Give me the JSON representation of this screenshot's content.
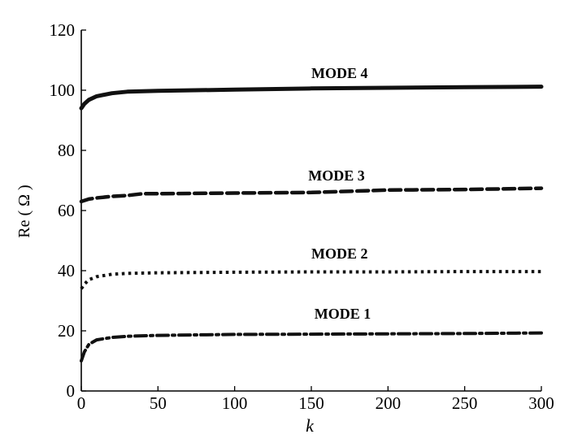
{
  "chart_data": {
    "type": "line",
    "title": "",
    "xlabel": "k",
    "ylabel": "Re ( Ω )",
    "xlim": [
      0,
      300
    ],
    "ylim": [
      0,
      120
    ],
    "xticks": [
      0,
      50,
      100,
      150,
      200,
      250,
      300
    ],
    "yticks": [
      0,
      20,
      40,
      60,
      80,
      100,
      120
    ],
    "grid": false,
    "legend": "none",
    "series": [
      {
        "name": "MODE 1",
        "style": "dashdot",
        "x": [
          0,
          2,
          5,
          10,
          20,
          30,
          50,
          100,
          150,
          200,
          250,
          300
        ],
        "y": [
          10,
          13,
          15.5,
          17,
          17.8,
          18.2,
          18.5,
          18.8,
          18.9,
          19,
          19.1,
          19.3
        ]
      },
      {
        "name": "MODE 2",
        "style": "dotted",
        "x": [
          0,
          2,
          5,
          10,
          20,
          30,
          50,
          100,
          150,
          200,
          250,
          300
        ],
        "y": [
          34,
          35.5,
          37,
          38,
          38.8,
          39.1,
          39.3,
          39.5,
          39.6,
          39.6,
          39.7,
          39.7
        ]
      },
      {
        "name": "MODE 3",
        "style": "dashed",
        "x": [
          0,
          5,
          10,
          20,
          30,
          40,
          50,
          100,
          150,
          200,
          250,
          300
        ],
        "y": [
          63,
          63.8,
          64.2,
          64.7,
          65,
          65.6,
          65.6,
          65.8,
          66,
          66.8,
          67,
          67.4
        ]
      },
      {
        "name": "MODE 4",
        "style": "solid",
        "x": [
          0,
          2,
          5,
          10,
          20,
          30,
          50,
          100,
          150,
          200,
          250,
          300
        ],
        "y": [
          94,
          95.5,
          96.8,
          98,
          99,
          99.5,
          99.8,
          100.2,
          100.6,
          100.8,
          101,
          101.2
        ]
      }
    ]
  }
}
